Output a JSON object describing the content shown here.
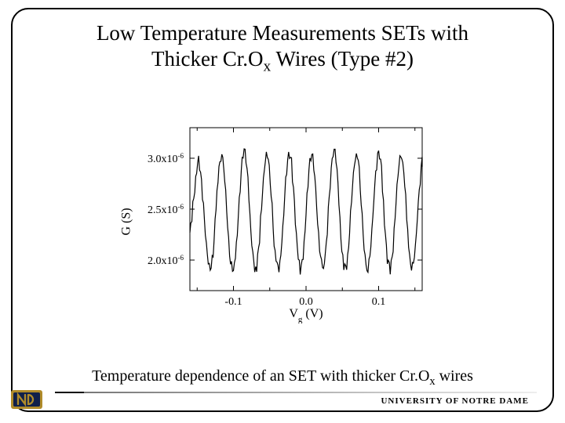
{
  "title_plain": "Low Temperature Measurements SETs with Thicker Cr.Ox Wires (Type #2)",
  "caption_plain": "Temperature dependence of an SET with thicker Cr.Ox wires",
  "footer": "UNIVERSITY OF NOTRE DAME",
  "chart": {
    "type": "line",
    "xlabel_plain": "Vg (V)",
    "ylabel_plain": "G (S)",
    "xlim": [
      -0.16,
      0.16
    ],
    "ylim": [
      1.7e-06,
      3.3e-06
    ],
    "xtick_positions": [
      -0.1,
      0.0,
      0.1
    ],
    "xtick_labels": [
      "-0.1",
      "0.0",
      "0.1"
    ],
    "ytick_positions": [
      2e-06,
      2.5e-06,
      3e-06
    ],
    "ytick_labels": [
      "2.0x10⁻⁶",
      "2.5x10⁻⁶",
      "3.0x10⁻⁶"
    ],
    "minor_x_step": 0.05,
    "line_color": "#000000",
    "line_width": 1.2,
    "background_color": "#ffffff",
    "border_color": "#000000",
    "label_fontsize": 16,
    "tick_fontsize": 14,
    "series": {
      "x": [
        -0.16,
        -0.156,
        -0.152,
        -0.148,
        -0.144,
        -0.14,
        -0.136,
        -0.132,
        -0.128,
        -0.124,
        -0.12,
        -0.116,
        -0.112,
        -0.108,
        -0.104,
        -0.1,
        -0.096,
        -0.092,
        -0.088,
        -0.084,
        -0.08,
        -0.076,
        -0.072,
        -0.068,
        -0.064,
        -0.06,
        -0.056,
        -0.052,
        -0.048,
        -0.044,
        -0.04,
        -0.036,
        -0.032,
        -0.028,
        -0.024,
        -0.02,
        -0.016,
        -0.012,
        -0.008,
        -0.004,
        0.0,
        0.004,
        0.008,
        0.012,
        0.016,
        0.02,
        0.024,
        0.028,
        0.032,
        0.036,
        0.04,
        0.044,
        0.048,
        0.052,
        0.056,
        0.06,
        0.064,
        0.068,
        0.072,
        0.076,
        0.08,
        0.084,
        0.088,
        0.092,
        0.096,
        0.1,
        0.104,
        0.108,
        0.112,
        0.116,
        0.12,
        0.124,
        0.128,
        0.132,
        0.136,
        0.14,
        0.144,
        0.148,
        0.152,
        0.156,
        0.16
      ],
      "y": [
        2.3e-06,
        2.55e-06,
        2.85e-06,
        3.02e-06,
        2.8e-06,
        2.4e-06,
        2.05e-06,
        1.92e-06,
        2.1e-06,
        2.55e-06,
        2.95e-06,
        3.08e-06,
        2.85e-06,
        2.35e-06,
        2e-06,
        1.9e-06,
        2.15e-06,
        2.62e-06,
        3e-06,
        3.1e-06,
        2.8e-06,
        2.28e-06,
        1.98e-06,
        1.95e-06,
        2.25e-06,
        2.72e-06,
        3.03e-06,
        3.08e-06,
        2.7e-06,
        2.2e-06,
        1.95e-06,
        1.98e-06,
        2.35e-06,
        2.82e-06,
        3.08e-06,
        3e-06,
        2.55e-06,
        2.1e-06,
        1.92e-06,
        2.05e-06,
        2.5e-06,
        2.92e-06,
        3.1e-06,
        2.9e-06,
        2.4e-06,
        2.02e-06,
        1.93e-06,
        2.18e-06,
        2.65e-06,
        3.02e-06,
        3.1e-06,
        2.78e-06,
        2.25e-06,
        1.96e-06,
        1.97e-06,
        2.3e-06,
        2.78e-06,
        3.06e-06,
        3.05e-06,
        2.62e-06,
        2.12e-06,
        1.92e-06,
        2.02e-06,
        2.45e-06,
        2.9e-06,
        3.1e-06,
        2.92e-06,
        2.42e-06,
        2.03e-06,
        1.93e-06,
        2.15e-06,
        2.62e-06,
        3e-06,
        3.08e-06,
        2.8e-06,
        2.3e-06,
        1.98e-06,
        1.96e-06,
        2.28e-06,
        2.72e-06,
        3e-06
      ]
    }
  },
  "colors": {
    "background": "#ffffff",
    "text": "#000000",
    "border": "#000000",
    "logo_gold": "#b08b2a",
    "logo_navy": "#10204a"
  }
}
